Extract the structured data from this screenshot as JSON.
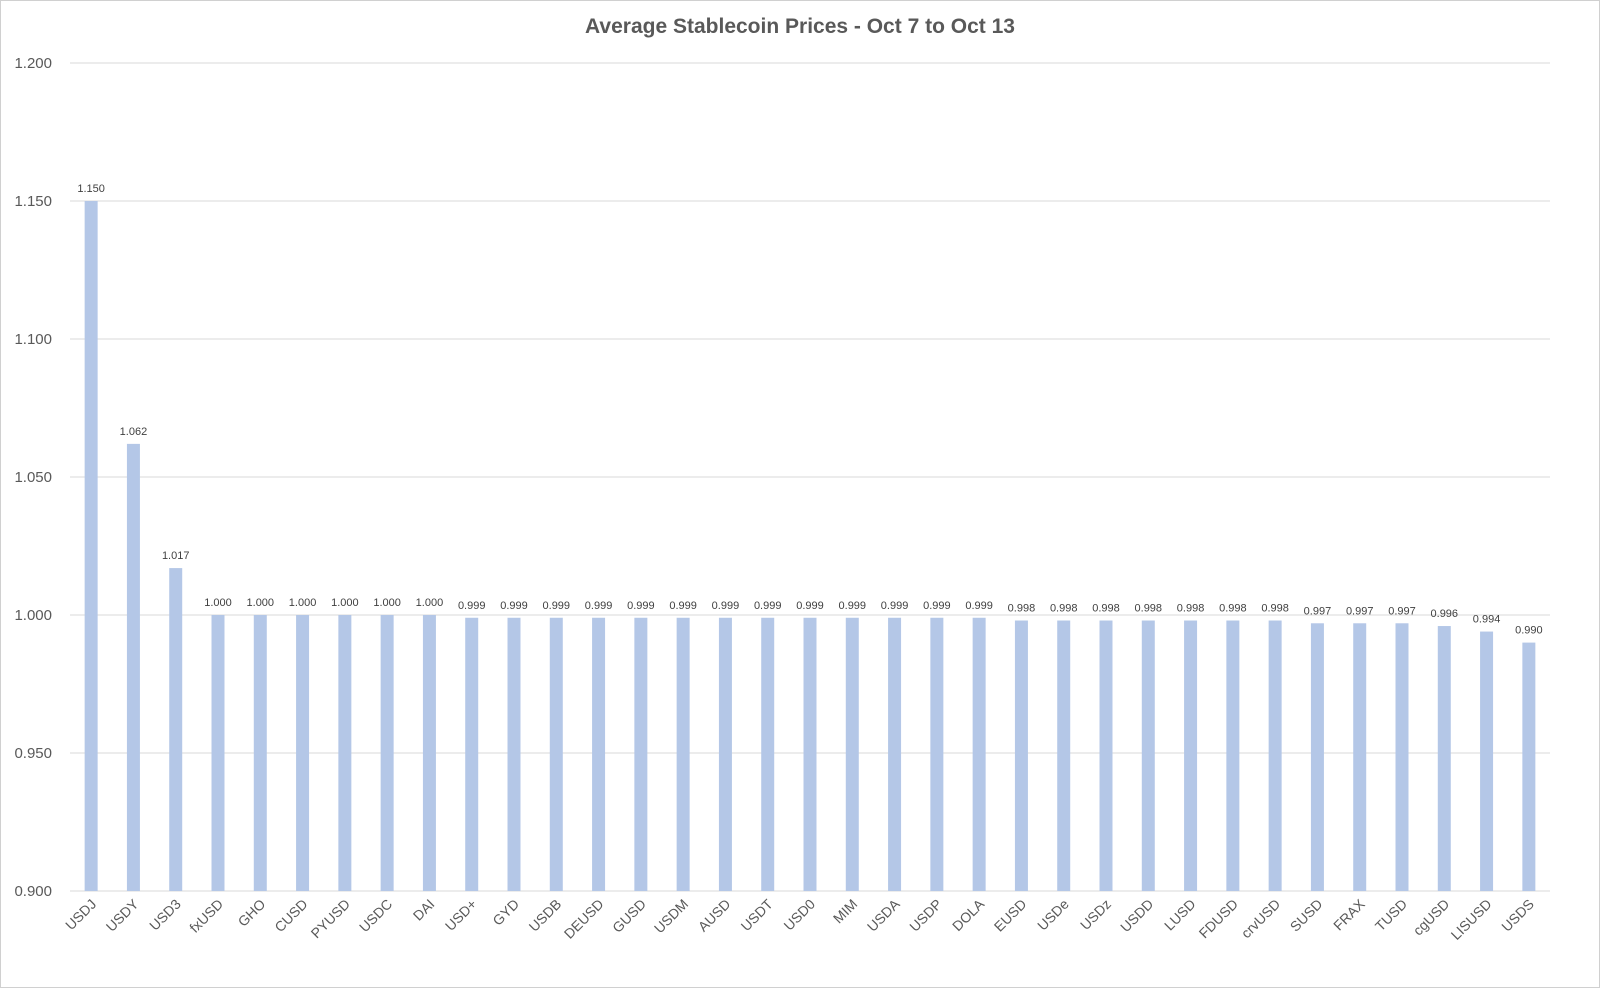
{
  "chart_data": {
    "type": "bar",
    "title": "Average Stablecoin Prices - Oct 7 to Oct 13",
    "xlabel": "",
    "ylabel": "",
    "ylim": [
      0.9,
      1.2
    ],
    "yticks": [
      "0.900",
      "0.950",
      "1.000",
      "1.050",
      "1.100",
      "1.150",
      "1.200"
    ],
    "grid": "horizontal",
    "legend": "none",
    "bar_color": "#b4c7e7",
    "categories": [
      "USDJ",
      "USDY",
      "USD3",
      "fxUSD",
      "GHO",
      "CUSD",
      "PYUSD",
      "USDC",
      "DAI",
      "USD+",
      "GYD",
      "USDB",
      "DEUSD",
      "GUSD",
      "USDM",
      "AUSD",
      "USDT",
      "USD0",
      "MIM",
      "USDA",
      "USDP",
      "DOLA",
      "EUSD",
      "USDe",
      "USDz",
      "USDD",
      "LUSD",
      "FDUSD",
      "crvUSD",
      "SUSD",
      "FRAX",
      "TUSD",
      "cgUSD",
      "LISUSD",
      "USDS"
    ],
    "values": [
      1.15,
      1.062,
      1.017,
      1.0,
      1.0,
      1.0,
      1.0,
      1.0,
      1.0,
      0.999,
      0.999,
      0.999,
      0.999,
      0.999,
      0.999,
      0.999,
      0.999,
      0.999,
      0.999,
      0.999,
      0.999,
      0.999,
      0.998,
      0.998,
      0.998,
      0.998,
      0.998,
      0.998,
      0.998,
      0.997,
      0.997,
      0.997,
      0.996,
      0.994,
      0.99
    ],
    "labels": [
      "1.150",
      "1.062",
      "1.017",
      "1.000",
      "1.000",
      "1.000",
      "1.000",
      "1.000",
      "1.000",
      "0.999",
      "0.999",
      "0.999",
      "0.999",
      "0.999",
      "0.999",
      "0.999",
      "0.999",
      "0.999",
      "0.999",
      "0.999",
      "0.999",
      "0.999",
      "0.998",
      "0.998",
      "0.998",
      "0.998",
      "0.998",
      "0.998",
      "0.998",
      "0.997",
      "0.997",
      "0.997",
      "0.996",
      "0.994",
      "0.990"
    ]
  }
}
